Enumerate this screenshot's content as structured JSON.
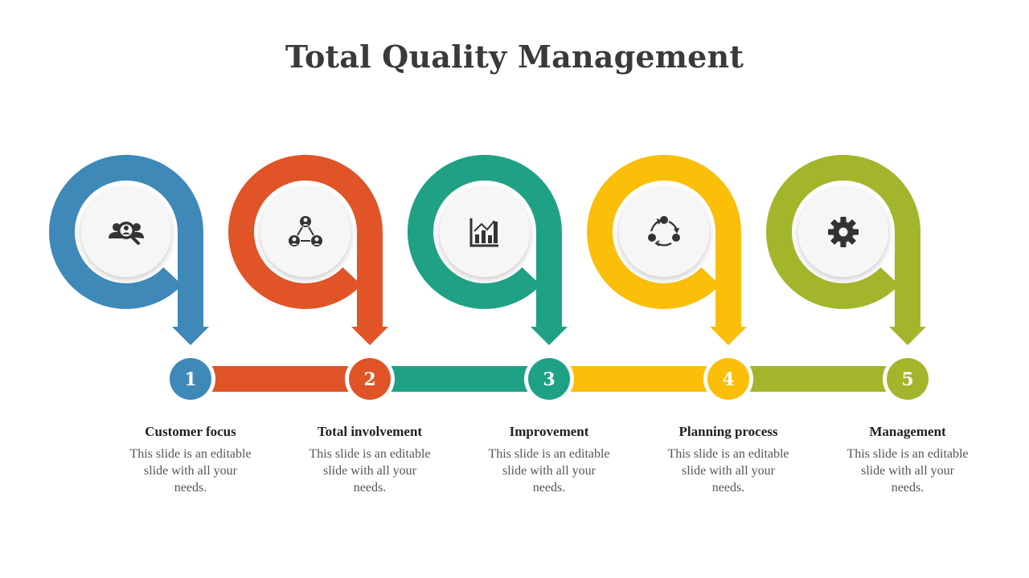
{
  "title": "Total Quality Management",
  "steps": [
    {
      "number": "1",
      "title": "Customer focus",
      "description": "This slide is an editable slide with all your needs.",
      "color": "#3F89B8",
      "icon": "customer-search-icon"
    },
    {
      "number": "2",
      "title": "Total involvement",
      "description": "This slide is an editable slide with all your needs.",
      "color": "#E05427",
      "icon": "team-network-icon"
    },
    {
      "number": "3",
      "title": "Improvement",
      "description": "This slide is an editable slide with all your needs.",
      "color": "#1FA186",
      "icon": "bar-chart-icon"
    },
    {
      "number": "4",
      "title": "Planning process",
      "description": "This slide is an editable slide with all your needs.",
      "color": "#FBBE09",
      "icon": "cycle-process-icon"
    },
    {
      "number": "5",
      "title": "Management",
      "description": "This slide is an editable slide with all your needs.",
      "color": "#A3B62B",
      "icon": "gear-icon"
    }
  ]
}
